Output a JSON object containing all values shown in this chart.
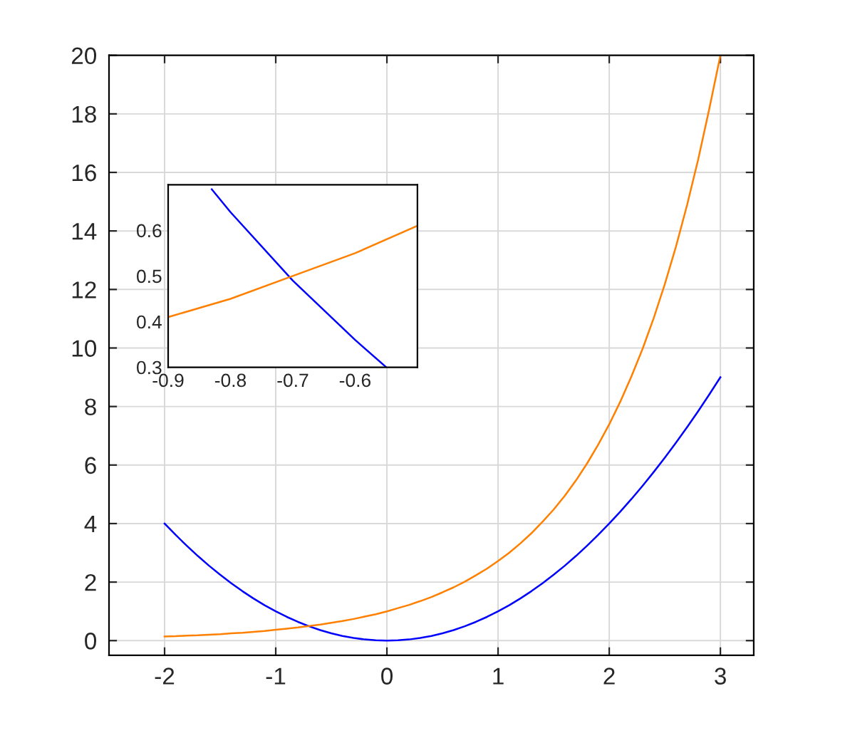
{
  "chart_data": [
    {
      "type": "line",
      "x": [
        -2,
        -1.9,
        -1.8,
        -1.7,
        -1.6,
        -1.5,
        -1.4,
        -1.3,
        -1.2,
        -1.1,
        -1,
        -0.9,
        -0.8,
        -0.7,
        -0.6,
        -0.5,
        -0.4,
        -0.3,
        -0.2,
        -0.1,
        0,
        0.1,
        0.2,
        0.3,
        0.4,
        0.5,
        0.6,
        0.7,
        0.8,
        0.9,
        1,
        1.1,
        1.2,
        1.3,
        1.4,
        1.5,
        1.6,
        1.7,
        1.8,
        1.9,
        2,
        2.1,
        2.2,
        2.3,
        2.4,
        2.5,
        2.6,
        2.7,
        2.8,
        2.9,
        3
      ],
      "series": [
        {
          "color": "#0000ff",
          "values": [
            4,
            3.61,
            3.24,
            2.89,
            2.56,
            2.25,
            1.96,
            1.69,
            1.44,
            1.21,
            1,
            0.81,
            0.64,
            0.49,
            0.36,
            0.25,
            0.16,
            0.09,
            0.04,
            0.01,
            0,
            0.01,
            0.04,
            0.09,
            0.16,
            0.25,
            0.36,
            0.49,
            0.64,
            0.81,
            1,
            1.21,
            1.44,
            1.69,
            1.96,
            2.25,
            2.56,
            2.89,
            3.24,
            3.61,
            4,
            4.41,
            4.84,
            5.29,
            5.76,
            6.25,
            6.76,
            7.29,
            7.84,
            8.41,
            9
          ]
        },
        {
          "color": "#ff8000",
          "values": [
            0.14,
            0.15,
            0.17,
            0.18,
            0.2,
            0.22,
            0.25,
            0.27,
            0.3,
            0.33,
            0.37,
            0.41,
            0.45,
            0.5,
            0.55,
            0.61,
            0.67,
            0.74,
            0.82,
            0.9,
            1,
            1.11,
            1.22,
            1.35,
            1.49,
            1.65,
            1.82,
            2.01,
            2.23,
            2.46,
            2.72,
            3.0,
            3.32,
            3.67,
            4.06,
            4.48,
            4.95,
            5.47,
            6.05,
            6.69,
            7.39,
            8.17,
            9.03,
            9.97,
            11.02,
            12.18,
            13.46,
            14.88,
            16.44,
            18.17,
            20
          ]
        }
      ],
      "xlim": [
        -2.5,
        3.3
      ],
      "ylim": [
        -0.5,
        20
      ],
      "xticks": [
        -2,
        -1,
        0,
        1,
        2,
        3
      ],
      "yticks": [
        0,
        2,
        4,
        6,
        8,
        10,
        12,
        14,
        16,
        18,
        20
      ],
      "grid": true
    },
    {
      "type": "line",
      "series": [
        {
          "color": "#0000ff",
          "x": [
            -0.83,
            -0.8,
            -0.7,
            -0.6,
            -0.55
          ],
          "values": [
            0.69,
            0.64,
            0.49,
            0.36,
            0.3
          ]
        },
        {
          "color": "#ff8000",
          "x": [
            -0.9,
            -0.8,
            -0.7,
            -0.6,
            -0.5
          ],
          "values": [
            0.41,
            0.45,
            0.5,
            0.55,
            0.61
          ]
        }
      ],
      "xlim": [
        -0.9,
        -0.5
      ],
      "ylim": [
        0.3,
        0.7
      ],
      "xticks": [
        -0.9,
        -0.8,
        -0.7,
        -0.6
      ],
      "yticks": [
        0.3,
        0.4,
        0.5,
        0.6
      ],
      "grid": false
    }
  ]
}
